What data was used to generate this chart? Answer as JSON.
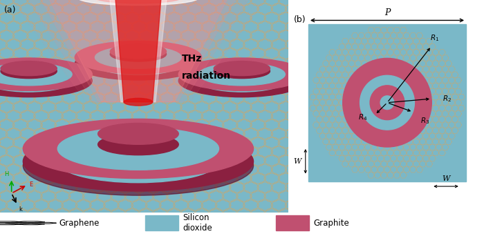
{
  "fig_width": 7.0,
  "fig_height": 3.42,
  "dpi": 100,
  "panel_a_label": "(a)",
  "panel_b_label": "(b)",
  "thz_text_line1": "THz",
  "thz_text_line2": "radiation",
  "sio2_color": "#7ab8c8",
  "graphite_color": "#c05070",
  "graphite_dark": "#8b2040",
  "graphite_mid": "#b04060",
  "graphene_hex_color": "#c8a870",
  "graphene_hex_edge": "#a08040",
  "p_label": "P",
  "w_label": "W",
  "legend_graphene_label": "Graphene",
  "legend_sio2_label": "Silicon\ndioxide",
  "legend_graphite_label": "Graphite",
  "panel_a_bg": "#7ab8c8",
  "beam_red": "#dd1111",
  "beam_pink": "#ff9999",
  "white": "#ffffff"
}
